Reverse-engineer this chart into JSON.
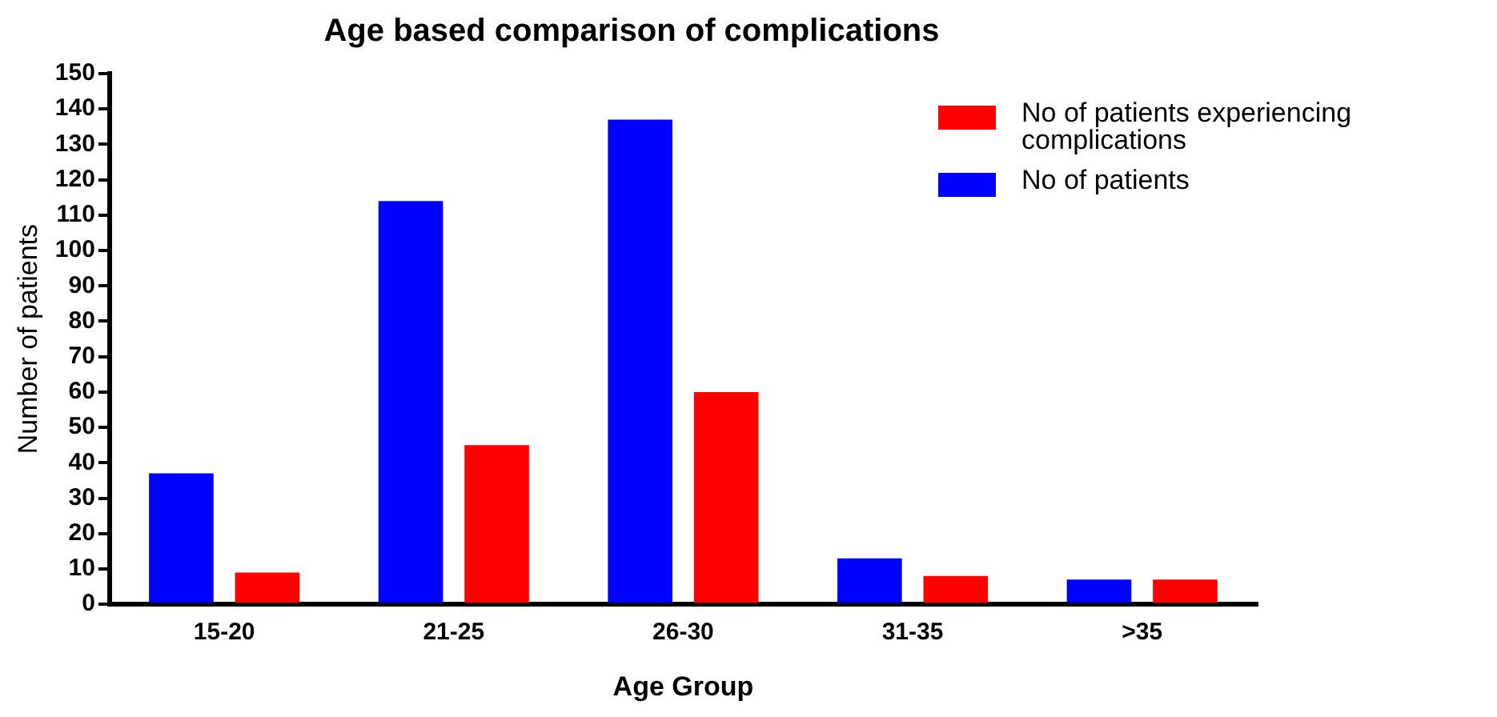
{
  "chart_data": {
    "type": "bar",
    "title": "Age based comparison of complications",
    "xlabel": "Age Group",
    "ylabel": "Number of patients",
    "categories": [
      "15-20",
      "21-25",
      "26-30",
      "31-35",
      ">35"
    ],
    "series": [
      {
        "name": "No of patients",
        "color": "#0000ff",
        "values": [
          37,
          114,
          137,
          13,
          7
        ]
      },
      {
        "name": "No of patients experiencing complications",
        "color": "#ff0000",
        "values": [
          9,
          45,
          60,
          8,
          7
        ]
      }
    ],
    "ylim": [
      0,
      150
    ],
    "yticks": [
      0,
      10,
      20,
      30,
      40,
      50,
      60,
      70,
      80,
      90,
      100,
      110,
      120,
      130,
      140,
      150
    ],
    "grid": false,
    "legend": "top right"
  }
}
